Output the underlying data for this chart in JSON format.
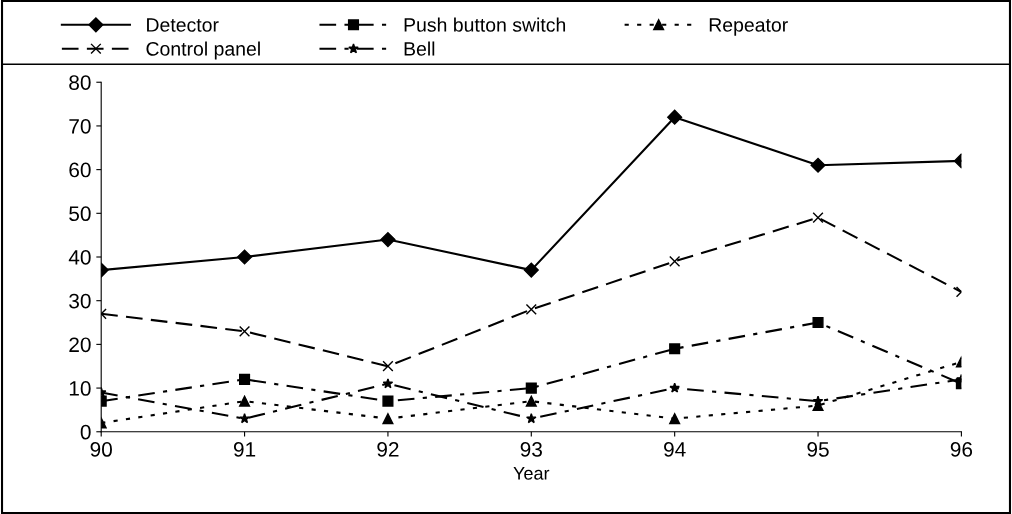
{
  "chart_data": {
    "type": "line",
    "xlabel": "Year",
    "x": [
      90,
      91,
      92,
      93,
      94,
      95,
      96
    ],
    "xlim": [
      90,
      96
    ],
    "xticks": [
      90,
      91,
      92,
      93,
      94,
      95,
      96
    ],
    "ylim": [
      0,
      80
    ],
    "yticks": [
      0,
      10,
      20,
      30,
      40,
      50,
      60,
      70,
      80
    ],
    "grid": false,
    "legend": "top",
    "series": [
      {
        "name": "Detector",
        "color": "#000000",
        "marker": "diamond",
        "line_style": "solid",
        "values": [
          37,
          40,
          44,
          37,
          72,
          61,
          62
        ]
      },
      {
        "name": "Push button switch",
        "color": "#000000",
        "marker": "square",
        "line_style": "dashdot",
        "values": [
          7,
          12,
          7,
          10,
          19,
          25,
          11
        ]
      },
      {
        "name": "Repeator",
        "color": "#000000",
        "marker": "triangle",
        "line_style": "dotted",
        "values": [
          2,
          7,
          3,
          7,
          3,
          6,
          16
        ]
      },
      {
        "name": "Control panel",
        "color": "#000000",
        "marker": "cross",
        "line_style": "dashed",
        "values": [
          27,
          23,
          15,
          28,
          39,
          49,
          32
        ]
      },
      {
        "name": "Bell",
        "color": "#000000",
        "marker": "star",
        "line_style": "dashdot",
        "values": [
          9,
          3,
          11,
          3,
          10,
          7,
          12
        ]
      }
    ]
  }
}
